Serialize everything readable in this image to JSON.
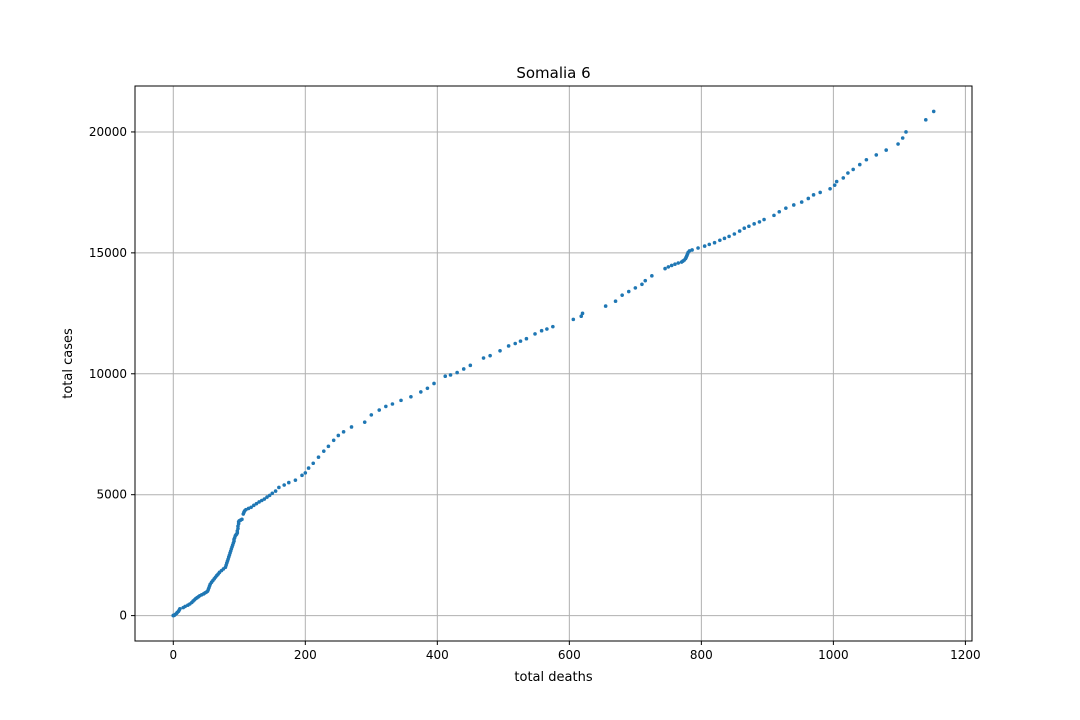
{
  "chart_data": {
    "type": "scatter",
    "title": "Somalia 6",
    "xlabel": "total deaths",
    "ylabel": "total cases",
    "xlim": [
      -58,
      1210
    ],
    "ylim": [
      -1050,
      21900
    ],
    "xticks": [
      0,
      200,
      400,
      600,
      800,
      1000,
      1200
    ],
    "yticks": [
      0,
      5000,
      10000,
      15000,
      20000
    ],
    "grid": true,
    "marker_color": "#1f77b4",
    "series": [
      {
        "name": "Somalia",
        "points": [
          [
            0,
            0
          ],
          [
            0,
            5
          ],
          [
            1,
            12
          ],
          [
            2,
            25
          ],
          [
            3,
            50
          ],
          [
            5,
            90
          ],
          [
            6,
            130
          ],
          [
            8,
            180
          ],
          [
            9,
            230
          ],
          [
            10,
            280
          ],
          [
            15,
            330
          ],
          [
            18,
            380
          ],
          [
            22,
            430
          ],
          [
            25,
            480
          ],
          [
            28,
            540
          ],
          [
            30,
            600
          ],
          [
            32,
            650
          ],
          [
            34,
            700
          ],
          [
            36,
            740
          ],
          [
            38,
            780
          ],
          [
            40,
            820
          ],
          [
            43,
            860
          ],
          [
            46,
            900
          ],
          [
            48,
            940
          ],
          [
            50,
            970
          ],
          [
            52,
            1010
          ],
          [
            53,
            1080
          ],
          [
            54,
            1150
          ],
          [
            55,
            1230
          ],
          [
            56,
            1300
          ],
          [
            58,
            1380
          ],
          [
            60,
            1450
          ],
          [
            62,
            1520
          ],
          [
            64,
            1590
          ],
          [
            66,
            1660
          ],
          [
            68,
            1720
          ],
          [
            70,
            1790
          ],
          [
            73,
            1860
          ],
          [
            76,
            1930
          ],
          [
            79,
            2000
          ],
          [
            80,
            2080
          ],
          [
            81,
            2170
          ],
          [
            82,
            2250
          ],
          [
            83,
            2330
          ],
          [
            84,
            2420
          ],
          [
            85,
            2500
          ],
          [
            86,
            2590
          ],
          [
            87,
            2670
          ],
          [
            88,
            2760
          ],
          [
            89,
            2840
          ],
          [
            90,
            2920
          ],
          [
            91,
            3000
          ],
          [
            92,
            3080
          ],
          [
            92,
            3150
          ],
          [
            93,
            3220
          ],
          [
            94,
            3300
          ],
          [
            95,
            3340
          ],
          [
            96,
            3370
          ],
          [
            97,
            3420
          ],
          [
            97,
            3500
          ],
          [
            98,
            3600
          ],
          [
            98,
            3700
          ],
          [
            99,
            3800
          ],
          [
            99,
            3880
          ],
          [
            100,
            3920
          ],
          [
            102,
            3950
          ],
          [
            104,
            3980
          ],
          [
            106,
            4200
          ],
          [
            107,
            4270
          ],
          [
            108,
            4330
          ],
          [
            110,
            4380
          ],
          [
            114,
            4430
          ],
          [
            118,
            4480
          ],
          [
            122,
            4560
          ],
          [
            126,
            4630
          ],
          [
            130,
            4700
          ],
          [
            134,
            4760
          ],
          [
            138,
            4820
          ],
          [
            142,
            4900
          ],
          [
            146,
            4970
          ],
          [
            150,
            5060
          ],
          [
            155,
            5150
          ],
          [
            160,
            5300
          ],
          [
            168,
            5400
          ],
          [
            175,
            5500
          ],
          [
            185,
            5600
          ],
          [
            195,
            5800
          ],
          [
            200,
            5900
          ],
          [
            205,
            6100
          ],
          [
            212,
            6300
          ],
          [
            220,
            6550
          ],
          [
            228,
            6800
          ],
          [
            235,
            7000
          ],
          [
            243,
            7250
          ],
          [
            250,
            7450
          ],
          [
            258,
            7600
          ],
          [
            270,
            7800
          ],
          [
            290,
            8000
          ],
          [
            300,
            8300
          ],
          [
            312,
            8500
          ],
          [
            322,
            8650
          ],
          [
            332,
            8750
          ],
          [
            345,
            8900
          ],
          [
            360,
            9050
          ],
          [
            375,
            9250
          ],
          [
            385,
            9400
          ],
          [
            395,
            9600
          ],
          [
            412,
            9900
          ],
          [
            420,
            9950
          ],
          [
            430,
            10050
          ],
          [
            440,
            10200
          ],
          [
            450,
            10350
          ],
          [
            470,
            10650
          ],
          [
            480,
            10750
          ],
          [
            495,
            10950
          ],
          [
            508,
            11150
          ],
          [
            518,
            11250
          ],
          [
            526,
            11350
          ],
          [
            535,
            11450
          ],
          [
            548,
            11650
          ],
          [
            558,
            11780
          ],
          [
            566,
            11850
          ],
          [
            575,
            11950
          ],
          [
            606,
            12250
          ],
          [
            618,
            12380
          ],
          [
            620,
            12500
          ],
          [
            655,
            12800
          ],
          [
            670,
            13000
          ],
          [
            680,
            13250
          ],
          [
            690,
            13400
          ],
          [
            700,
            13550
          ],
          [
            710,
            13700
          ],
          [
            715,
            13850
          ],
          [
            725,
            14050
          ],
          [
            745,
            14350
          ],
          [
            750,
            14420
          ],
          [
            755,
            14480
          ],
          [
            760,
            14530
          ],
          [
            765,
            14580
          ],
          [
            770,
            14620
          ],
          [
            772,
            14660
          ],
          [
            774,
            14700
          ],
          [
            776,
            14760
          ],
          [
            777,
            14820
          ],
          [
            778,
            14880
          ],
          [
            779,
            14950
          ],
          [
            780,
            15020
          ],
          [
            782,
            15080
          ],
          [
            786,
            15120
          ],
          [
            795,
            15200
          ],
          [
            805,
            15280
          ],
          [
            812,
            15350
          ],
          [
            820,
            15420
          ],
          [
            828,
            15520
          ],
          [
            835,
            15600
          ],
          [
            842,
            15680
          ],
          [
            850,
            15780
          ],
          [
            858,
            15900
          ],
          [
            865,
            16020
          ],
          [
            872,
            16100
          ],
          [
            880,
            16200
          ],
          [
            888,
            16280
          ],
          [
            895,
            16380
          ],
          [
            910,
            16550
          ],
          [
            918,
            16700
          ],
          [
            928,
            16850
          ],
          [
            940,
            16980
          ],
          [
            952,
            17100
          ],
          [
            962,
            17250
          ],
          [
            970,
            17400
          ],
          [
            980,
            17500
          ],
          [
            995,
            17650
          ],
          [
            1002,
            17800
          ],
          [
            1005,
            17950
          ],
          [
            1015,
            18100
          ],
          [
            1022,
            18300
          ],
          [
            1030,
            18450
          ],
          [
            1040,
            18650
          ],
          [
            1050,
            18850
          ],
          [
            1065,
            19050
          ],
          [
            1080,
            19250
          ],
          [
            1098,
            19500
          ],
          [
            1105,
            19750
          ],
          [
            1110,
            20000
          ],
          [
            1140,
            20500
          ],
          [
            1152,
            20850
          ]
        ]
      }
    ]
  }
}
